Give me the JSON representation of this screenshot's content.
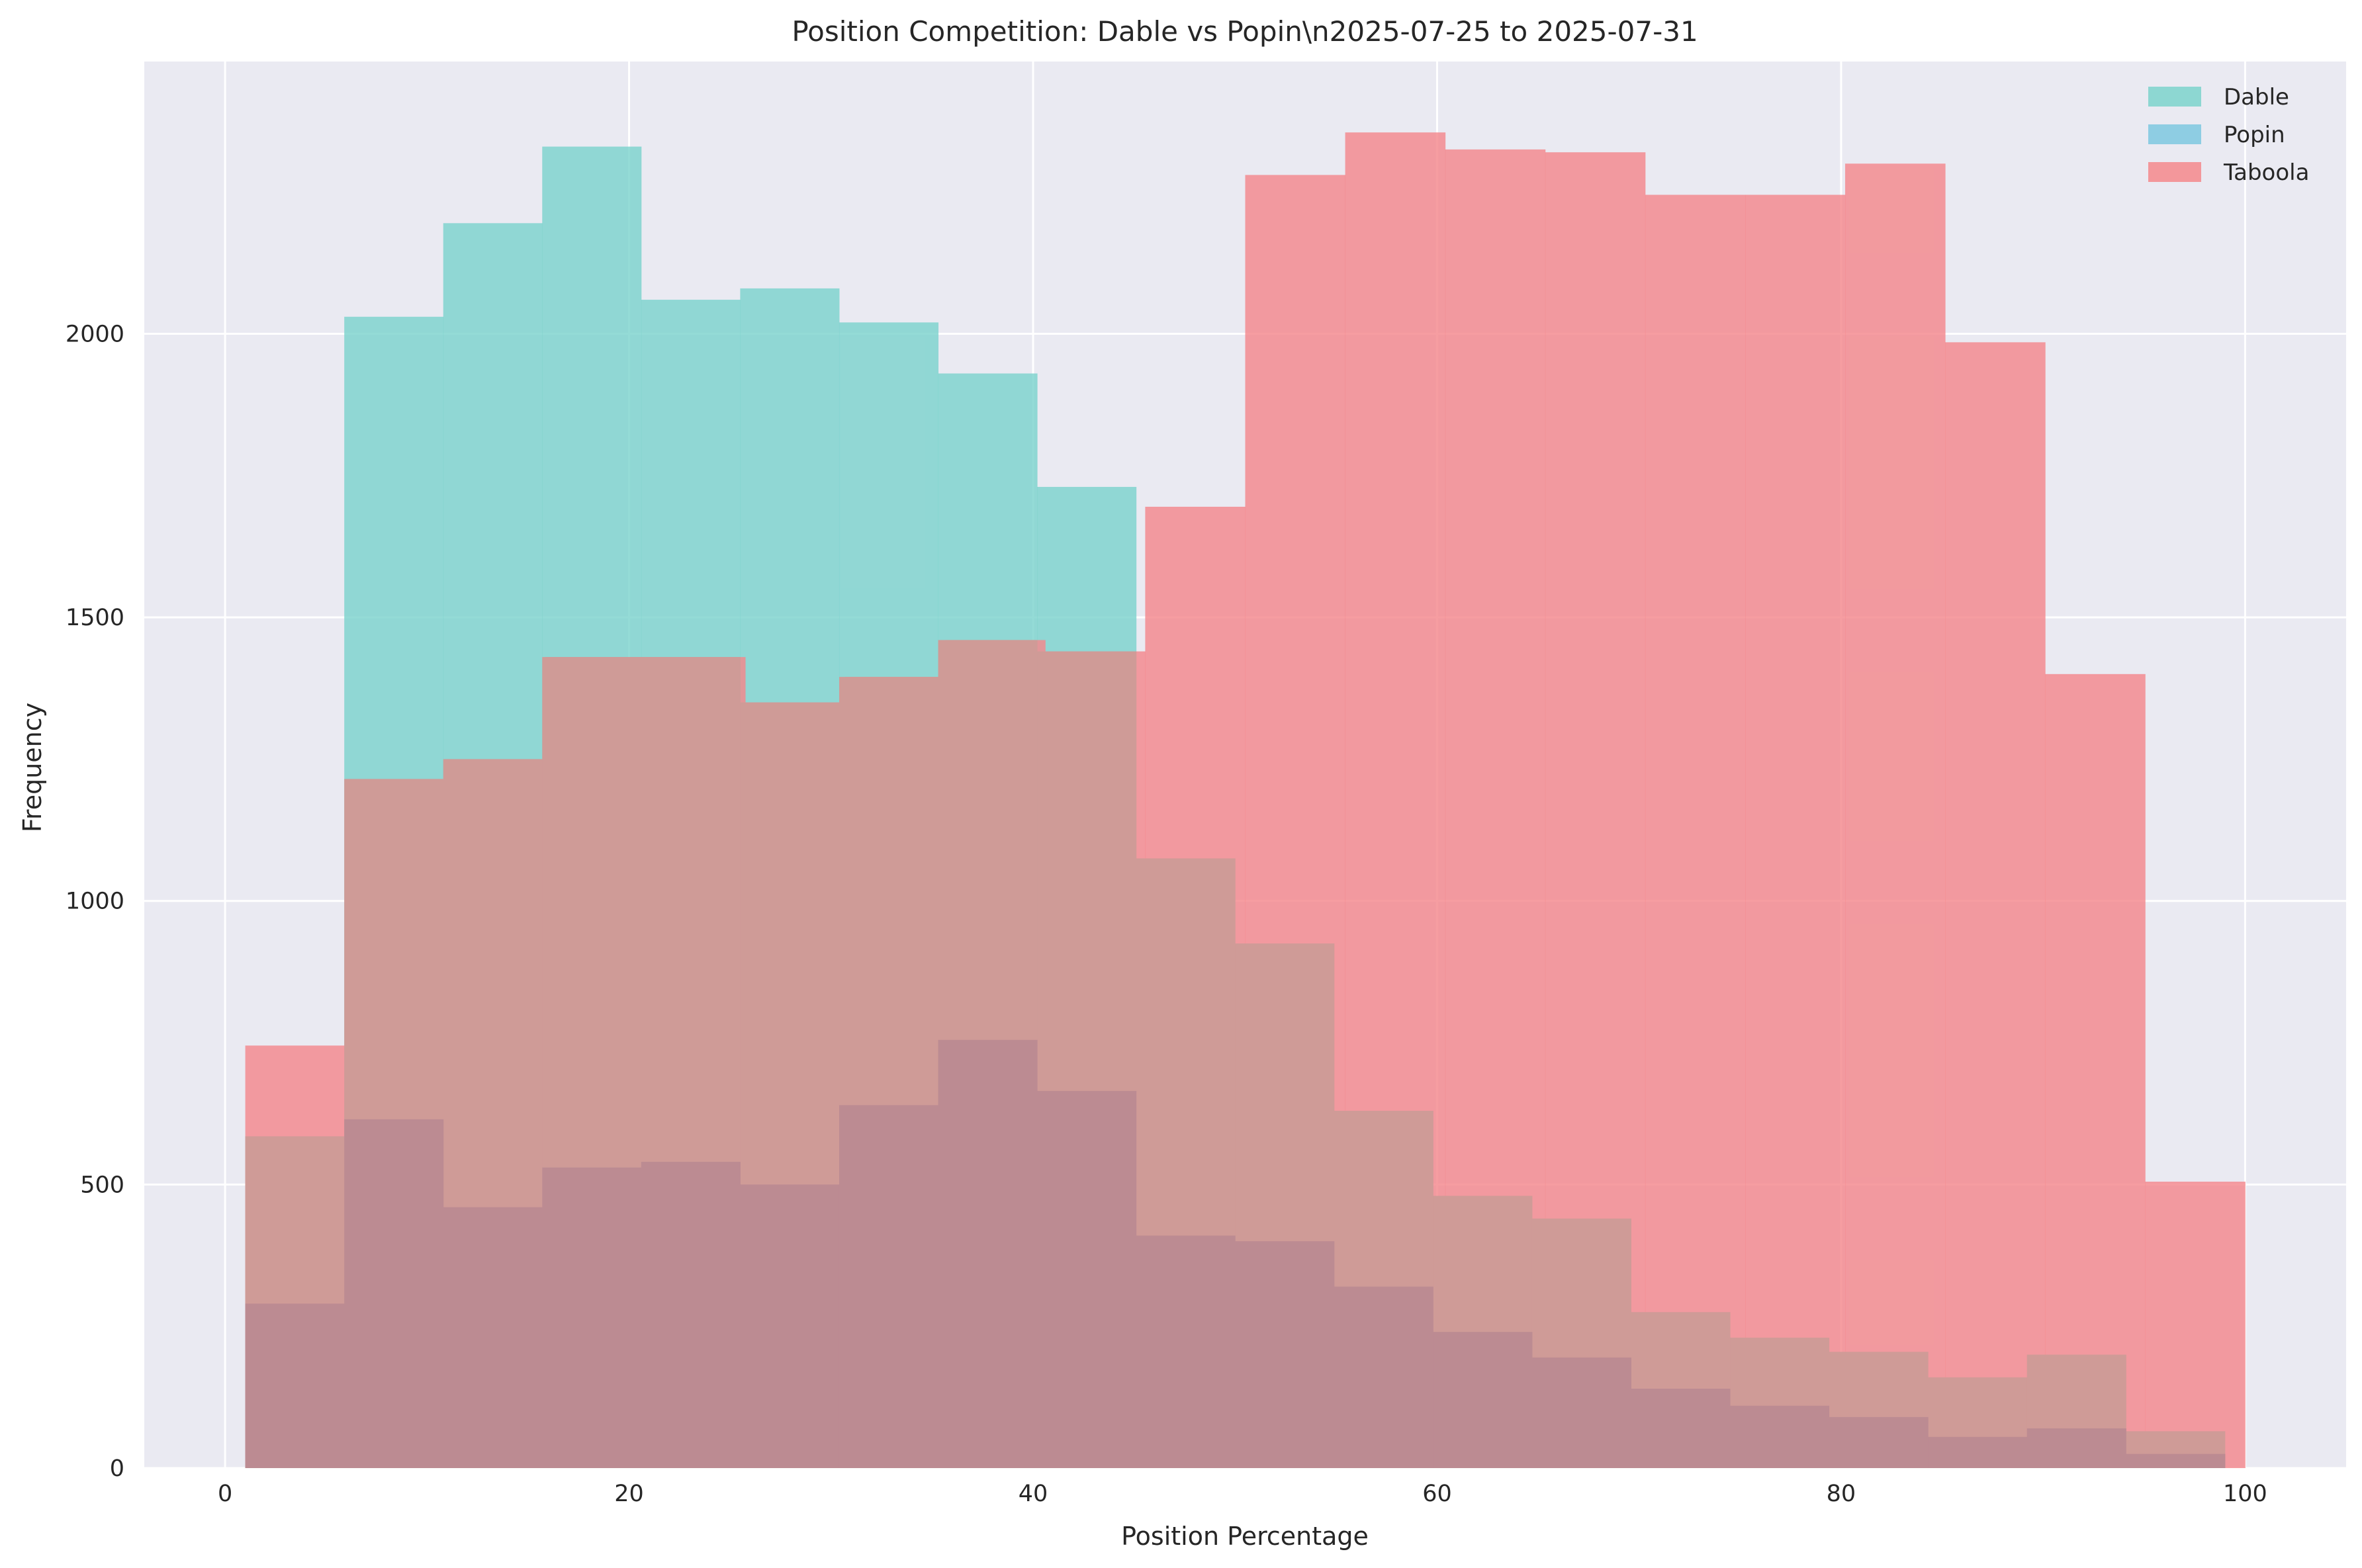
{
  "chart_data": {
    "type": "histogram",
    "title": "Position Competition: Dable vs Popin\\n2025-07-25 to 2025-07-31",
    "xlabel": "Position Percentage",
    "ylabel": "Frequency",
    "xlim": [
      -4,
      105
    ],
    "ylim": [
      0,
      2480
    ],
    "xticks": [
      0,
      20,
      40,
      60,
      80,
      100
    ],
    "yticks": [
      0,
      500,
      1000,
      1500,
      2000
    ],
    "grid": true,
    "legend_position": "top-right",
    "series": [
      {
        "name": "Dable",
        "color": "#7dd3cd",
        "bin_edges": [
          1,
          5.9,
          10.8,
          15.7,
          20.6,
          25.5,
          30.4,
          35.3,
          40.2,
          45.1,
          50,
          54.9,
          59.8,
          64.7,
          69.6,
          74.5,
          79.4,
          84.3,
          89.2,
          94.1,
          99
        ],
        "values": [
          290,
          2030,
          2195,
          2330,
          2060,
          2080,
          2020,
          1930,
          1730,
          410,
          400,
          320,
          240,
          195,
          140,
          110,
          90,
          55,
          70,
          25
        ]
      },
      {
        "name": "Popin",
        "color": "#7ec8e0",
        "bin_edges": [
          1,
          5.9,
          10.8,
          15.7,
          20.6,
          25.5,
          30.4,
          35.3,
          40.2,
          45.1,
          50,
          54.9,
          59.8,
          64.7,
          69.6,
          74.5,
          79.4,
          84.3,
          89.2,
          94.1,
          99
        ],
        "values": [
          585,
          615,
          460,
          530,
          540,
          500,
          640,
          755,
          665,
          410,
          400,
          320,
          240,
          195,
          140,
          110,
          90,
          55,
          70,
          25
        ]
      },
      {
        "name": "Taboola",
        "color": "#f4888c",
        "bin_edges": [
          1,
          5.95,
          10.9,
          15.85,
          20.8,
          25.75,
          30.7,
          35.65,
          40.6,
          45.55,
          50.5,
          55.45,
          60.4,
          65.35,
          70.3,
          75.25,
          80.2,
          85.15,
          90.1,
          95.05,
          100
        ],
        "values": [
          745,
          1215,
          1250,
          1430,
          1430,
          1350,
          1395,
          1460,
          1440,
          1695,
          2280,
          2355,
          2325,
          2320,
          2245,
          2245,
          2300,
          1985,
          1400,
          505
        ]
      }
    ],
    "overlay_series": [
      {
        "name": "",
        "color": "#cf9b97",
        "bin_edges": [
          1,
          5.9,
          10.8,
          15.7,
          20.6,
          25.5,
          30.4,
          35.3,
          40.2,
          45.1,
          50,
          54.9,
          59.8,
          64.7,
          69.6,
          74.5,
          79.4,
          84.3,
          89.2,
          94.1,
          99
        ],
        "values": [
          585,
          1215,
          1250,
          1430,
          1430,
          1350,
          1395,
          1460,
          1440,
          1075,
          925,
          630,
          480,
          440,
          275,
          230,
          205,
          160,
          200,
          65
        ]
      },
      {
        "name": "",
        "color": "#bc8b92",
        "bin_edges": [
          1,
          5.9,
          10.8,
          15.7,
          20.6,
          25.5,
          30.4,
          35.3,
          40.2,
          45.1,
          50,
          54.9,
          59.8,
          64.7,
          69.6,
          74.5,
          79.4,
          84.3,
          89.2,
          94.1,
          99
        ],
        "values": [
          290,
          615,
          460,
          530,
          540,
          500,
          640,
          755,
          665,
          410,
          400,
          320,
          240,
          195,
          140,
          110,
          90,
          55,
          70,
          25
        ]
      }
    ]
  },
  "legend": [
    {
      "label": "Dable",
      "color": "#7dd3cd"
    },
    {
      "label": "Popin",
      "color": "#7ec8e0"
    },
    {
      "label": "Taboola",
      "color": "#f4888c"
    }
  ],
  "colors": {
    "plot_background": "#eaeaf2",
    "grid": "#ffffff",
    "text": "#262626"
  }
}
